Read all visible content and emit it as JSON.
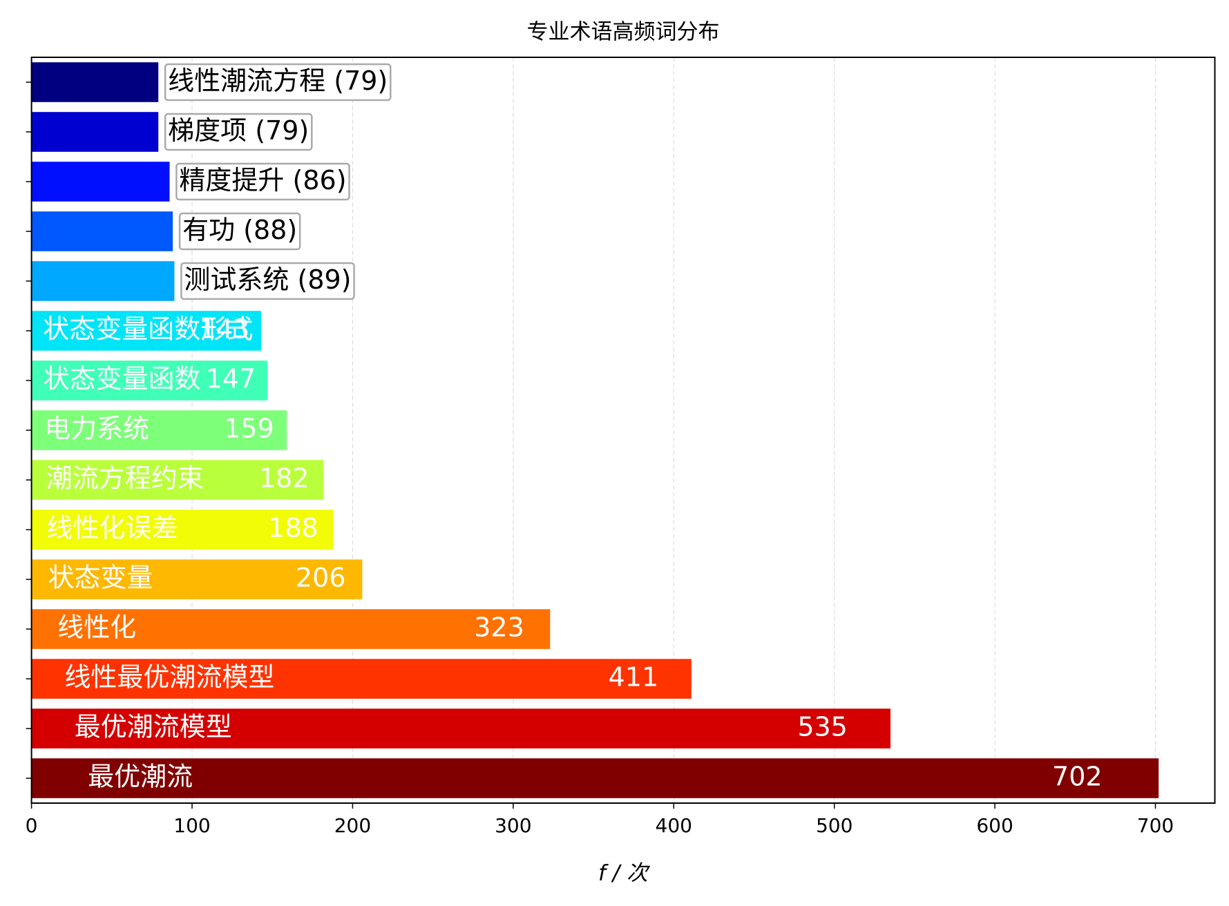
{
  "chart_data": {
    "type": "barh",
    "title": "专业术语高频词分布",
    "xlabel": "f / 次",
    "categories": [
      "最优潮流",
      "最优潮流模型",
      "线性最优潮流模型",
      "线性化",
      "状态变量",
      "线性化误差",
      "潮流方程约束",
      "电力系统",
      "状态变量函数",
      "状态变量函数形式",
      "测试系统",
      "有功",
      "精度提升",
      "梯度项",
      "线性潮流方程"
    ],
    "values": [
      702,
      535,
      411,
      323,
      206,
      188,
      182,
      159,
      147,
      143,
      89,
      88,
      86,
      79,
      79
    ],
    "value_labels": [
      "702",
      "535",
      "411",
      "323",
      "206",
      "188",
      "182",
      "159",
      "147",
      "143",
      "(89)",
      "(88)",
      "(86)",
      "(79)",
      "(79)"
    ],
    "colors": [
      "#800000",
      "#d40000",
      "#ff3300",
      "#ff7100",
      "#ffb800",
      "#f1fc06",
      "#baff3c",
      "#7dff7a",
      "#40ffb7",
      "#00e4f8",
      "#00a8ff",
      "#0058ff",
      "#0010ff",
      "#0000d1",
      "#000080"
    ],
    "xlim": [
      0,
      737
    ],
    "xticks": [
      0,
      100,
      200,
      300,
      400,
      500,
      600,
      700
    ],
    "grid": true
  }
}
